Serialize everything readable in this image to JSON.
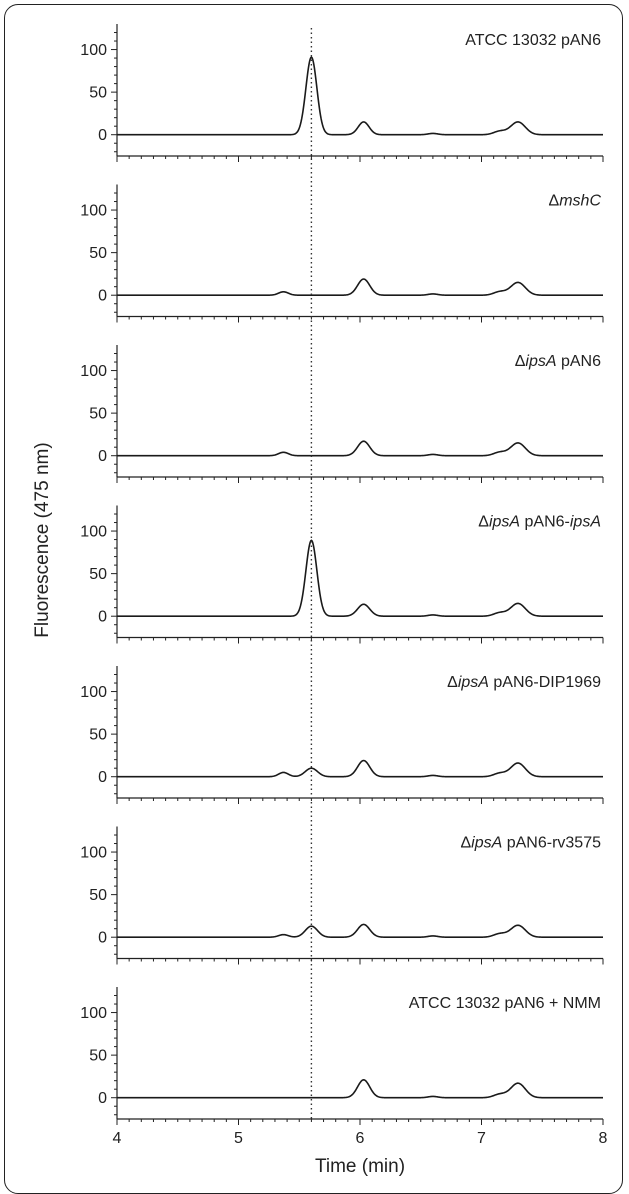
{
  "chart_data": {
    "type": "line",
    "xlabel": "Time (min)",
    "ylabel": "Fluorescence (475 nm)",
    "xlim": [
      4,
      8
    ],
    "ylim": [
      -25,
      130
    ],
    "x_ticks": [
      "4",
      "5",
      "6",
      "7",
      "8"
    ],
    "y_ticks": [
      "0",
      "50",
      "100"
    ],
    "reference_line": {
      "x": 5.6,
      "style": "dotted"
    },
    "panels": [
      {
        "label": [
          {
            "t": "ATCC 13032 pAN6",
            "i": false
          }
        ],
        "peaks": [
          {
            "x": 5.6,
            "h": 91,
            "w": 0.045
          },
          {
            "x": 6.03,
            "h": 15,
            "w": 0.045
          },
          {
            "x": 7.3,
            "h": 15,
            "w": 0.06
          },
          {
            "x": 7.15,
            "h": 4,
            "w": 0.05
          },
          {
            "x": 6.6,
            "h": 1.5,
            "w": 0.04
          }
        ]
      },
      {
        "label": [
          {
            "t": "Δ",
            "i": false
          },
          {
            "t": "mshC",
            "i": true
          }
        ],
        "peaks": [
          {
            "x": 5.37,
            "h": 4,
            "w": 0.04
          },
          {
            "x": 6.03,
            "h": 19,
            "w": 0.05
          },
          {
            "x": 7.3,
            "h": 15,
            "w": 0.06
          },
          {
            "x": 7.15,
            "h": 4,
            "w": 0.05
          },
          {
            "x": 6.6,
            "h": 1.5,
            "w": 0.04
          }
        ]
      },
      {
        "label": [
          {
            "t": "Δ",
            "i": false
          },
          {
            "t": "ipsA",
            "i": true
          },
          {
            "t": " pAN6",
            "i": false
          }
        ],
        "peaks": [
          {
            "x": 5.37,
            "h": 4,
            "w": 0.04
          },
          {
            "x": 6.03,
            "h": 17,
            "w": 0.05
          },
          {
            "x": 7.3,
            "h": 15,
            "w": 0.06
          },
          {
            "x": 7.15,
            "h": 4,
            "w": 0.05
          },
          {
            "x": 6.6,
            "h": 1.5,
            "w": 0.04
          }
        ]
      },
      {
        "label": [
          {
            "t": "Δ",
            "i": false
          },
          {
            "t": "ipsA",
            "i": true
          },
          {
            "t": " pAN6-",
            "i": false
          },
          {
            "t": "ipsA",
            "i": true
          }
        ],
        "peaks": [
          {
            "x": 5.6,
            "h": 89,
            "w": 0.045
          },
          {
            "x": 6.03,
            "h": 14,
            "w": 0.05
          },
          {
            "x": 7.3,
            "h": 15,
            "w": 0.06
          },
          {
            "x": 7.15,
            "h": 4,
            "w": 0.05
          },
          {
            "x": 6.6,
            "h": 1.5,
            "w": 0.04
          }
        ]
      },
      {
        "label": [
          {
            "t": "Δ",
            "i": false
          },
          {
            "t": "ipsA",
            "i": true
          },
          {
            "t": " pAN6-DIP1969",
            "i": false
          }
        ],
        "peaks": [
          {
            "x": 5.37,
            "h": 5,
            "w": 0.04
          },
          {
            "x": 5.6,
            "h": 10,
            "w": 0.05
          },
          {
            "x": 6.03,
            "h": 19,
            "w": 0.05
          },
          {
            "x": 7.3,
            "h": 16,
            "w": 0.06
          },
          {
            "x": 7.15,
            "h": 4,
            "w": 0.05
          },
          {
            "x": 6.6,
            "h": 1.5,
            "w": 0.04
          }
        ]
      },
      {
        "label": [
          {
            "t": "Δ",
            "i": false
          },
          {
            "t": "ipsA",
            "i": true
          },
          {
            "t": " pAN6-rv3575",
            "i": false
          }
        ],
        "peaks": [
          {
            "x": 5.37,
            "h": 3,
            "w": 0.04
          },
          {
            "x": 5.6,
            "h": 13,
            "w": 0.05
          },
          {
            "x": 6.03,
            "h": 15,
            "w": 0.05
          },
          {
            "x": 7.3,
            "h": 14,
            "w": 0.06
          },
          {
            "x": 7.15,
            "h": 4,
            "w": 0.05
          },
          {
            "x": 6.6,
            "h": 1.5,
            "w": 0.04
          }
        ]
      },
      {
        "label": [
          {
            "t": "ATCC 13032 pAN6 + NMM",
            "i": false
          }
        ],
        "peaks": [
          {
            "x": 6.03,
            "h": 21,
            "w": 0.05
          },
          {
            "x": 7.3,
            "h": 17,
            "w": 0.06
          },
          {
            "x": 7.15,
            "h": 4,
            "w": 0.05
          },
          {
            "x": 6.6,
            "h": 1.5,
            "w": 0.04
          }
        ]
      }
    ]
  }
}
